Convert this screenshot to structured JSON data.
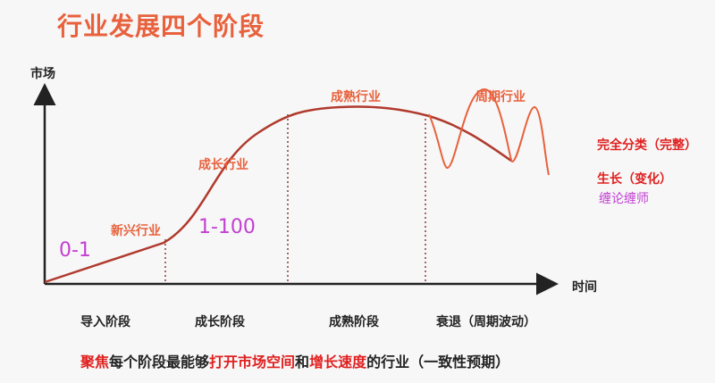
{
  "title": "行业发展四个阶段",
  "axes": {
    "y_label": "市场",
    "x_label": "时间"
  },
  "curve_labels": {
    "emerging": "新兴行业",
    "growth": "成长行业",
    "mature": "成熟行业",
    "cyclical": "周期行业"
  },
  "numbers": {
    "zero_to_one": "0-1",
    "one_to_hundred": "1-100"
  },
  "side_notes": {
    "complete": "完全分类（完整）",
    "growth_change": "生长（变化）",
    "author": "缠论缠师"
  },
  "stages": [
    "导入阶段",
    "成长阶段",
    "成熟阶段",
    "衰退（周期波动）"
  ],
  "bottom_text": {
    "p1": "聚焦",
    "p2": "每个阶段最能够",
    "p3": "打开市场空间",
    "p4": "和",
    "p5": "增长速度",
    "p6": "的行业（一致性预期）"
  },
  "colors": {
    "accent": "#e8613c",
    "curve": "#c0392b",
    "red": "#e02020",
    "purple": "#c23fd1"
  }
}
